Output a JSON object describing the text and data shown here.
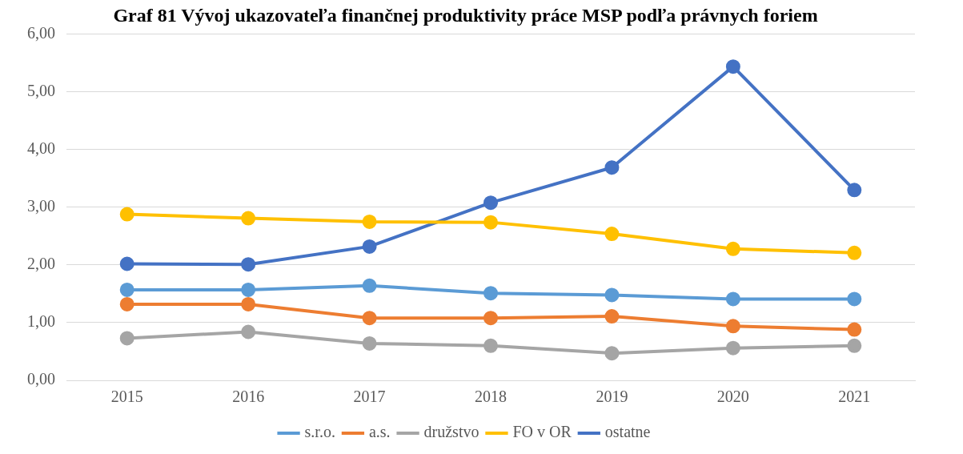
{
  "chart_data": {
    "type": "line",
    "title": "Graf 81 Vývoj ukazovateľa finančnej produktivity práce MSP podľa právnych foriem",
    "categories": [
      "2015",
      "2016",
      "2017",
      "2018",
      "2019",
      "2020",
      "2021"
    ],
    "series": [
      {
        "name": "s.r.o.",
        "color": "#5b9bd5",
        "values": [
          1.57,
          1.57,
          1.64,
          1.51,
          1.48,
          1.41,
          1.41
        ]
      },
      {
        "name": "a.s.",
        "color": "#ed7d31",
        "values": [
          1.32,
          1.32,
          1.08,
          1.08,
          1.11,
          0.94,
          0.88
        ]
      },
      {
        "name": "družstvo",
        "color": "#a5a5a5",
        "values": [
          0.73,
          0.84,
          0.64,
          0.6,
          0.47,
          0.56,
          0.6
        ]
      },
      {
        "name": "FO v OR",
        "color": "#ffc000",
        "values": [
          2.88,
          2.81,
          2.75,
          2.74,
          2.54,
          2.28,
          2.21
        ]
      },
      {
        "name": "ostatne",
        "color": "#4472c4",
        "values": [
          2.02,
          2.01,
          2.32,
          3.08,
          3.69,
          5.44,
          3.3
        ]
      }
    ],
    "ylim": [
      0,
      6
    ],
    "yticks": [
      {
        "value": 0,
        "label": "0,00"
      },
      {
        "value": 1,
        "label": "1,00"
      },
      {
        "value": 2,
        "label": "2,00"
      },
      {
        "value": 3,
        "label": "3,00"
      },
      {
        "value": 4,
        "label": "4,00"
      },
      {
        "value": 5,
        "label": "5,00"
      },
      {
        "value": 6,
        "label": "6,00"
      }
    ],
    "grid": "y",
    "legend": "bottom",
    "marker": "circle",
    "line_style": "solid"
  }
}
